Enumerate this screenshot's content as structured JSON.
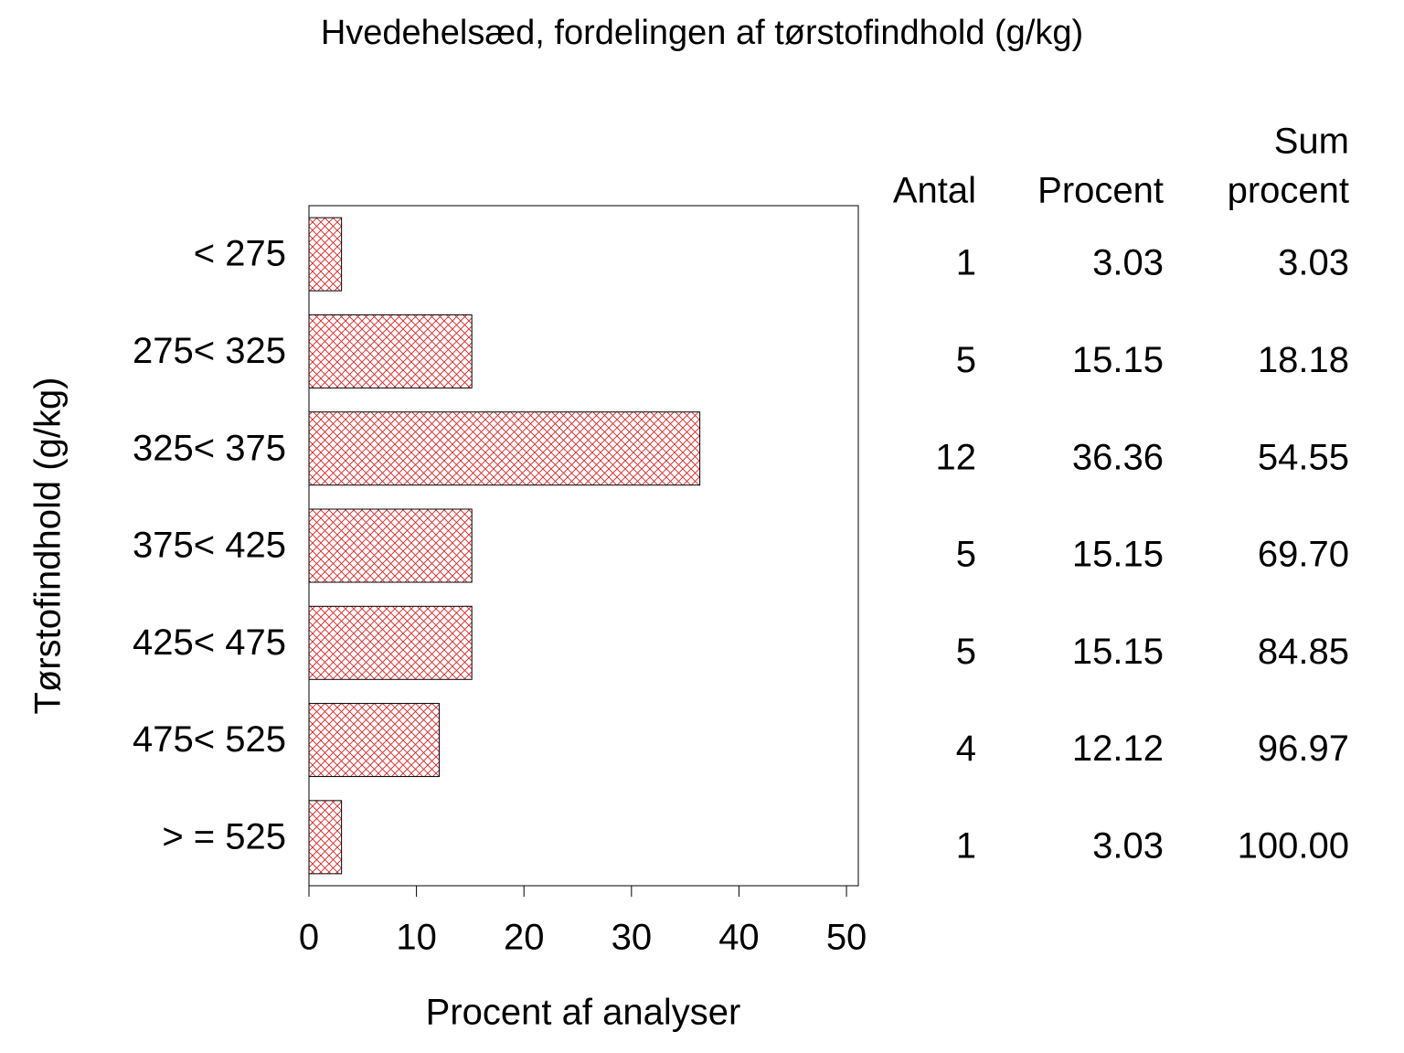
{
  "chart_data": {
    "type": "hbar",
    "title": "Hvedehelsæd, fordelingen af tørstofindhold (g/kg)",
    "x_label": "Procent af analyser",
    "y_label": "Tørstofindhold (g/kg)",
    "categories": [
      "< 275",
      "275< 325",
      "325< 375",
      "375< 425",
      "425< 475",
      "475< 525",
      "> = 525"
    ],
    "values": [
      3.03,
      15.15,
      36.36,
      15.15,
      15.15,
      12.12,
      3.03
    ],
    "color": "#e02020",
    "xlim": [
      0,
      51.1
    ],
    "xticks": [
      0,
      10,
      20,
      30,
      40,
      50
    ],
    "table_headers": [
      [
        "Antal"
      ],
      [
        "Procent"
      ],
      [
        "Sum",
        "procent"
      ]
    ],
    "counts": [
      1,
      5,
      12,
      5,
      5,
      4,
      1
    ],
    "cumulative_percent": [
      "3.03",
      "18.18",
      "54.55",
      "69.70",
      "84.85",
      "96.97",
      "100.00"
    ]
  }
}
